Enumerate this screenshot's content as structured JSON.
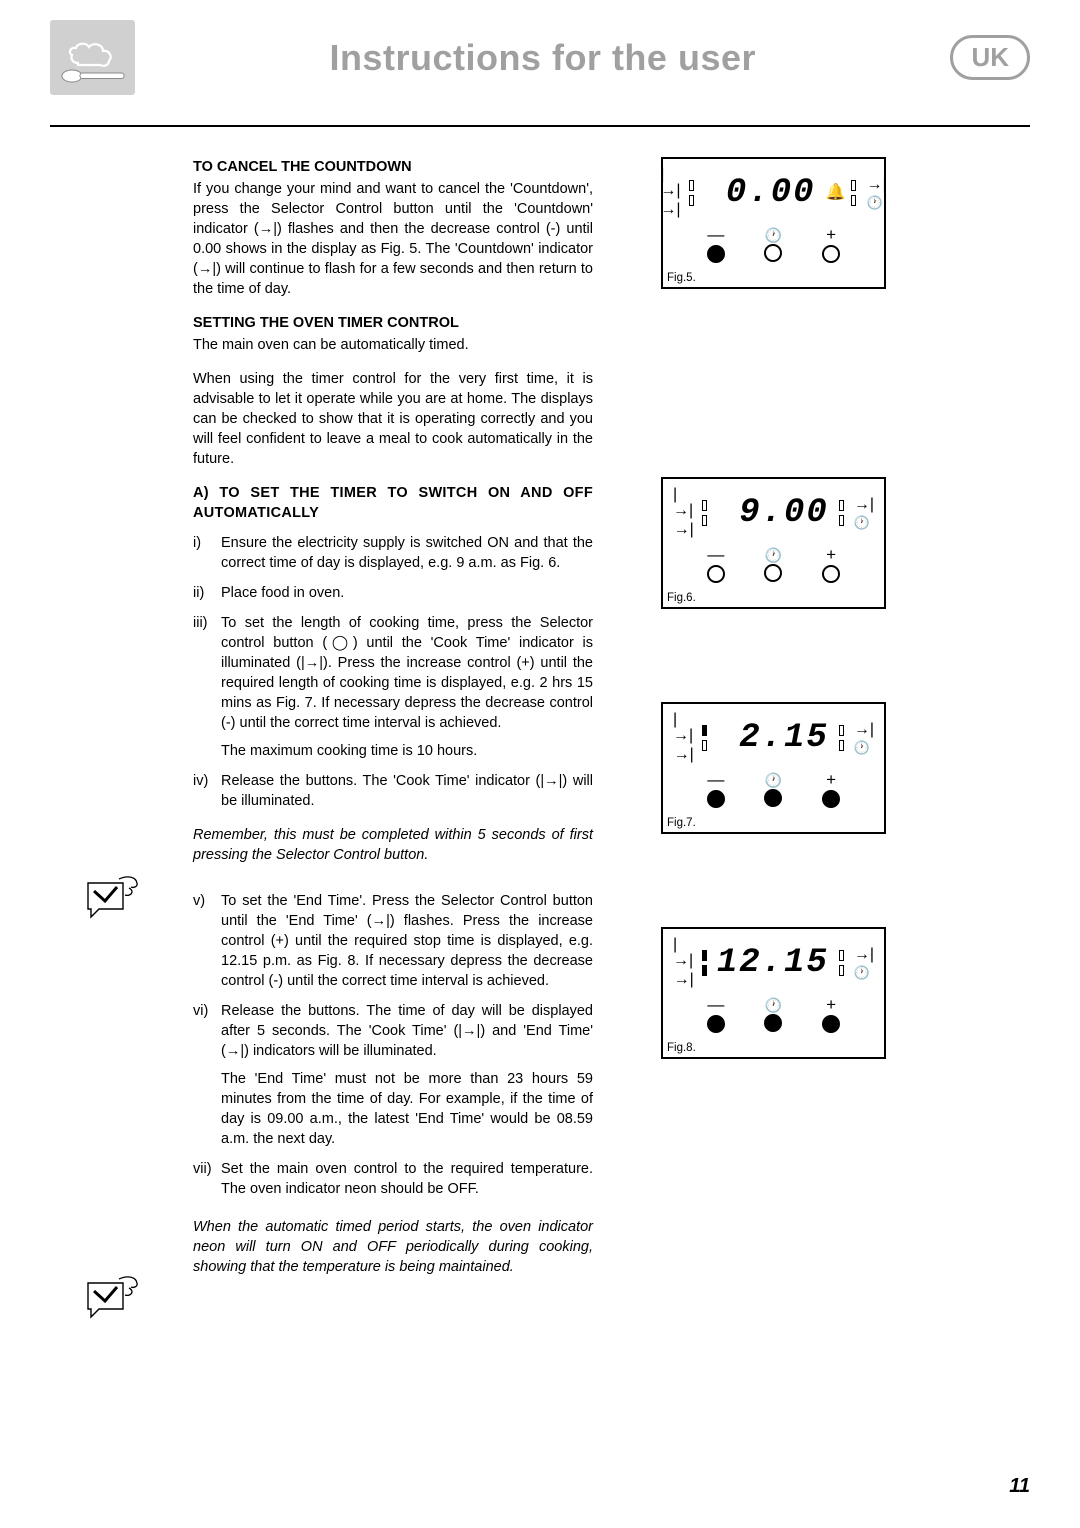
{
  "header": {
    "title": "Instructions for the user",
    "badge": "UK"
  },
  "sections": {
    "cancel": {
      "heading": "TO CANCEL THE COUNTDOWN",
      "body": "If you change your mind and want to cancel the 'Countdown', press the Selector Control button until the 'Countdown' indicator (→|) flashes and then the decrease control (-) until 0.00 shows in the display as Fig. 5. The 'Countdown' indicator (→|) will continue to flash for a few seconds and then return to the time of day."
    },
    "timer": {
      "heading": "SETTING THE OVEN TIMER CONTROL",
      "p1": "The main oven can be automatically timed.",
      "p2": "When using the timer control for the very first time, it is advisable to let it operate while you are at home. The displays can be checked to show that it is operating correctly and you will feel confident to leave a meal to cook automatically in the future."
    },
    "subA": {
      "heading": "A) TO SET THE TIMER TO SWITCH ON AND OFF AUTOMATICALLY",
      "s1": "Ensure the electricity supply is switched ON and that the correct time of day is displayed, e.g. 9 a.m. as Fig. 6.",
      "s2": "Place food in oven.",
      "s3": "To set the length of cooking time, press the Selector control button (◯) until the 'Cook Time' indicator is illuminated (|→|). Press the increase control (+) until the required length of cooking time is displayed, e.g. 2 hrs 15 mins as Fig. 7. If necessary depress the decrease control (-) until the correct time interval is achieved.",
      "s3b": "The maximum cooking time is 10 hours.",
      "s4": "Release the buttons. The 'Cook Time' indicator (|→|) will be illuminated.",
      "note1": "Remember, this must be completed within 5 seconds of first pressing the Selector Control button.",
      "s5": "To set the 'End Time'. Press the Selector Control button until the 'End Time' (→|) flashes. Press the increase control (+) until the required stop time is displayed, e.g. 12.15 p.m. as Fig. 8. If necessary depress the decrease control (-) until the correct time interval is achieved.",
      "s6": "Release the buttons. The time of day will be displayed after 5 seconds. The 'Cook Time' (|→|) and 'End Time' (→|) indicators will be illuminated.",
      "s6b": "The 'End Time' must not be more than 23 hours 59 minutes from the time of day. For example, if the time of day is 09.00 a.m., the latest 'End Time' would be 08.59 a.m. the next day.",
      "s7": "Set the main oven control to the required temperature. The oven indicator neon should be OFF.",
      "note2": "When the automatic timed period starts, the oven indicator neon will turn ON and OFF periodically during cooking, showing that the temperature is being maintained."
    }
  },
  "figures": {
    "f5": {
      "label": "Fig.5.",
      "display": "0.00",
      "filled": [
        true,
        false,
        false
      ],
      "leftInd": [
        false,
        false
      ],
      "rightInd": [
        false,
        false
      ],
      "bell": true,
      "offsetTop": 0
    },
    "f6": {
      "label": "Fig.6.",
      "display": "9.00",
      "filled": [
        false,
        false,
        false
      ],
      "leftInd": [
        false,
        false
      ],
      "rightInd": [
        false,
        false
      ],
      "bell": false,
      "offsetTop": 320
    },
    "f7": {
      "label": "Fig.7.",
      "display": "2.15",
      "filled": [
        true,
        true,
        true
      ],
      "leftInd": [
        true,
        false
      ],
      "rightInd": [
        false,
        false
      ],
      "bell": false,
      "offsetTop": 545
    },
    "f8": {
      "label": "Fig.8.",
      "display": "12.15",
      "filled": [
        true,
        true,
        true
      ],
      "leftInd": [
        true,
        true
      ],
      "rightInd": [
        false,
        false
      ],
      "bell": false,
      "offsetTop": 770
    }
  },
  "pageNumber": "11",
  "romanNums": {
    "i": "i)",
    "ii": "ii)",
    "iii": "iii)",
    "iv": "iv)",
    "v": "v)",
    "vi": "vi)",
    "vii": "vii)"
  },
  "symbols": {
    "cookTime": "|→|",
    "endTime": "→|",
    "minus": "—",
    "plus": "+",
    "clock": "⦶"
  }
}
